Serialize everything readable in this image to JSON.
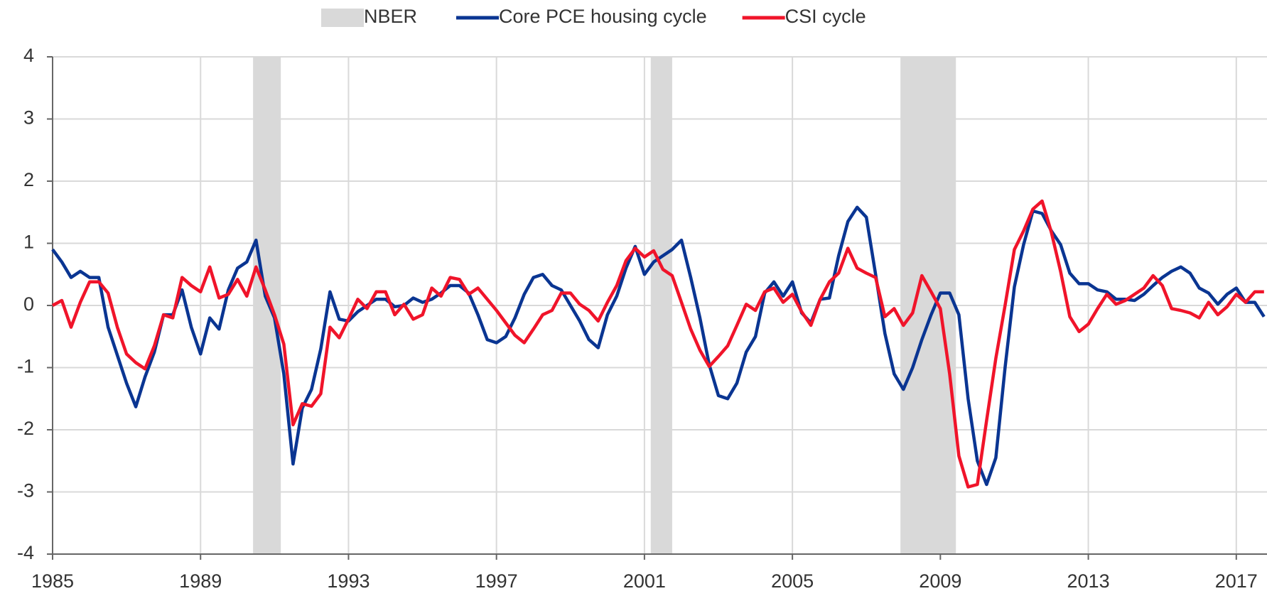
{
  "chart_data": {
    "type": "line",
    "x": [
      1985,
      1985.25,
      1985.5,
      1985.75,
      1986,
      1986.25,
      1986.5,
      1986.75,
      1987,
      1987.25,
      1987.5,
      1987.75,
      1988,
      1988.25,
      1988.5,
      1988.75,
      1989,
      1989.25,
      1989.5,
      1989.75,
      1990,
      1990.25,
      1990.5,
      1990.75,
      1991,
      1991.25,
      1991.5,
      1991.75,
      1992,
      1992.25,
      1992.5,
      1992.75,
      1993,
      1993.25,
      1993.5,
      1993.75,
      1994,
      1994.25,
      1994.5,
      1994.75,
      1995,
      1995.25,
      1995.5,
      1995.75,
      1996,
      1996.25,
      1996.5,
      1996.75,
      1997,
      1997.25,
      1997.5,
      1997.75,
      1998,
      1998.25,
      1998.5,
      1998.75,
      1999,
      1999.25,
      1999.5,
      1999.75,
      2000,
      2000.25,
      2000.5,
      2000.75,
      2001,
      2001.25,
      2001.5,
      2001.75,
      2002,
      2002.25,
      2002.5,
      2002.75,
      2003,
      2003.25,
      2003.5,
      2003.75,
      2004,
      2004.25,
      2004.5,
      2004.75,
      2005,
      2005.25,
      2005.5,
      2005.75,
      2006,
      2006.25,
      2006.5,
      2006.75,
      2007,
      2007.25,
      2007.5,
      2007.75,
      2008,
      2008.25,
      2008.5,
      2008.75,
      2009,
      2009.25,
      2009.5,
      2009.75,
      2010,
      2010.25,
      2010.5,
      2010.75,
      2011,
      2011.25,
      2011.5,
      2011.75,
      2012,
      2012.25,
      2012.5,
      2012.75,
      2013,
      2013.25,
      2013.5,
      2013.75,
      2014,
      2014.25,
      2014.5,
      2014.75,
      2015,
      2015.25,
      2015.5,
      2015.75,
      2016,
      2016.25,
      2016.5,
      2016.75,
      2017,
      2017.25,
      2017.5,
      2017.75
    ],
    "series": [
      {
        "name": "Core PCE housing cycle",
        "color": "#0a3592",
        "values": [
          0.9,
          0.7,
          0.45,
          0.55,
          0.45,
          0.45,
          -0.35,
          -0.8,
          -1.25,
          -1.63,
          -1.15,
          -0.75,
          -0.15,
          -0.15,
          0.25,
          -0.35,
          -0.78,
          -0.2,
          -0.38,
          0.25,
          0.6,
          0.7,
          1.05,
          0.15,
          -0.2,
          -1.1,
          -2.55,
          -1.65,
          -1.35,
          -0.7,
          0.22,
          -0.22,
          -0.25,
          -0.1,
          0.0,
          0.1,
          0.1,
          -0.02,
          0.0,
          0.12,
          0.05,
          0.1,
          0.2,
          0.32,
          0.32,
          0.2,
          -0.15,
          -0.55,
          -0.6,
          -0.5,
          -0.2,
          0.18,
          0.45,
          0.5,
          0.32,
          0.25,
          0.0,
          -0.25,
          -0.55,
          -0.68,
          -0.15,
          0.15,
          0.6,
          0.95,
          0.5,
          0.7,
          0.8,
          0.9,
          1.05,
          0.45,
          -0.2,
          -0.95,
          -1.45,
          -1.5,
          -1.25,
          -0.75,
          -0.5,
          0.2,
          0.38,
          0.15,
          0.38,
          -0.12,
          -0.28,
          0.1,
          0.12,
          0.8,
          1.35,
          1.58,
          1.42,
          0.5,
          -0.45,
          -1.1,
          -1.35,
          -1.0,
          -0.55,
          -0.15,
          0.2,
          0.2,
          -0.15,
          -1.5,
          -2.5,
          -2.88,
          -2.45,
          -1.0,
          0.3,
          0.98,
          1.52,
          1.48,
          1.2,
          0.98,
          0.52,
          0.35,
          0.35,
          0.25,
          0.22,
          0.1,
          0.1,
          0.08,
          0.18,
          0.32,
          0.45,
          0.55,
          0.62,
          0.52,
          0.28,
          0.2,
          0.02,
          0.18,
          0.28,
          0.05,
          0.05,
          -0.18
        ]
      },
      {
        "name": "CSI cycle",
        "color": "#f0142a",
        "values": [
          0.0,
          0.08,
          -0.35,
          0.05,
          0.38,
          0.38,
          0.2,
          -0.35,
          -0.78,
          -0.92,
          -1.02,
          -0.65,
          -0.15,
          -0.2,
          0.45,
          0.32,
          0.22,
          0.62,
          0.12,
          0.18,
          0.42,
          0.15,
          0.62,
          0.25,
          -0.15,
          -0.62,
          -1.92,
          -1.58,
          -1.62,
          -1.42,
          -0.35,
          -0.52,
          -0.22,
          0.1,
          -0.05,
          0.22,
          0.22,
          -0.15,
          0.02,
          -0.22,
          -0.15,
          0.28,
          0.15,
          0.45,
          0.42,
          0.18,
          0.28,
          0.1,
          -0.08,
          -0.28,
          -0.48,
          -0.6,
          -0.38,
          -0.15,
          -0.08,
          0.2,
          0.2,
          0.02,
          -0.08,
          -0.25,
          0.05,
          0.32,
          0.72,
          0.92,
          0.78,
          0.88,
          0.58,
          0.48,
          0.05,
          -0.38,
          -0.72,
          -0.98,
          -0.82,
          -0.65,
          -0.32,
          0.02,
          -0.08,
          0.22,
          0.28,
          0.05,
          0.18,
          -0.1,
          -0.32,
          0.1,
          0.38,
          0.52,
          0.92,
          0.6,
          0.52,
          0.45,
          -0.18,
          -0.05,
          -0.32,
          -0.12,
          0.48,
          0.22,
          -0.05,
          -1.1,
          -2.42,
          -2.92,
          -2.88,
          -1.85,
          -0.85,
          0.0,
          0.9,
          1.2,
          1.55,
          1.68,
          1.18,
          0.55,
          -0.18,
          -0.42,
          -0.3,
          -0.05,
          0.18,
          0.02,
          0.08,
          0.18,
          0.28,
          0.48,
          0.32,
          -0.05,
          -0.08,
          -0.12,
          -0.2,
          0.05,
          -0.15,
          -0.02,
          0.18,
          0.05,
          0.22,
          0.22
        ]
      }
    ],
    "recession_label": "NBER",
    "recession_color": "#d9d9d9",
    "recessions": [
      [
        1990.42,
        1991.17
      ],
      [
        2001.17,
        2001.75
      ],
      [
        2007.92,
        2009.42
      ]
    ],
    "xlim": [
      1985,
      2017.83
    ],
    "xticks": [
      1985,
      1989,
      1993,
      1997,
      2001,
      2005,
      2009,
      2013,
      2017
    ],
    "ylim": [
      -4,
      4
    ],
    "yticks": [
      -4,
      -3,
      -2,
      -1,
      0,
      1,
      2,
      3,
      4
    ],
    "grid": true
  }
}
